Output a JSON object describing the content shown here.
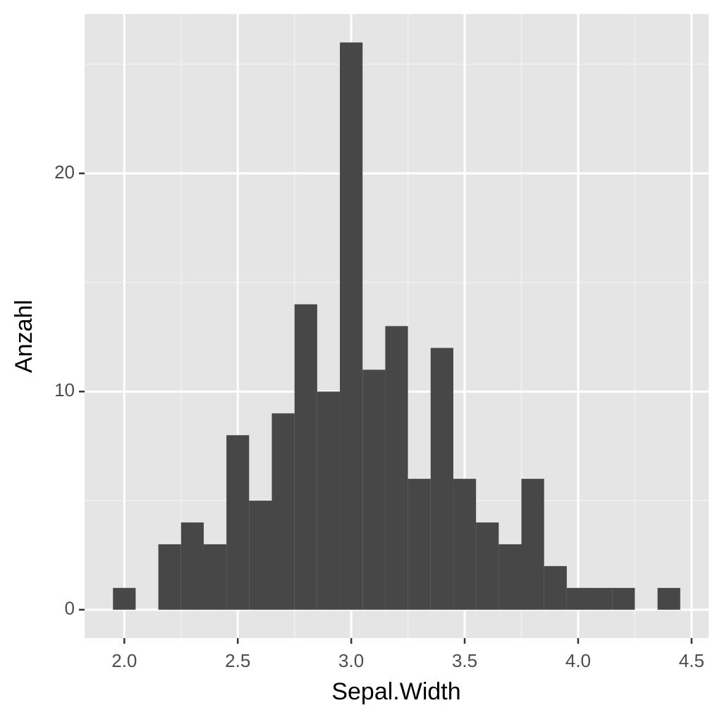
{
  "chart_data": {
    "type": "histogram",
    "x_label": "Sepal.Width",
    "y_label": "Anzahl",
    "bins": [
      1.95,
      2.05,
      2.15,
      2.25,
      2.35,
      2.45,
      2.55,
      2.65,
      2.75,
      2.85,
      2.95,
      3.05,
      3.15,
      3.25,
      3.35,
      3.45,
      3.55,
      3.65,
      3.75,
      3.85,
      3.95,
      4.05,
      4.15,
      4.25,
      4.35,
      4.45
    ],
    "values": [
      1,
      0,
      3,
      4,
      3,
      8,
      5,
      9,
      14,
      10,
      26,
      11,
      13,
      6,
      12,
      6,
      4,
      3,
      6,
      2,
      1,
      1,
      1,
      0,
      1
    ],
    "color": "#474747",
    "xlim": [
      1.825,
      4.575
    ],
    "ylim": [
      -1.3,
      27.3
    ],
    "xticks": [
      {
        "value": 2,
        "label": "2.0"
      },
      2.5,
      {
        "value": 3,
        "label": "3.0"
      },
      3.5,
      {
        "value": 4,
        "label": "4.0"
      },
      4.5
    ],
    "yticks": [
      0,
      10,
      20
    ],
    "grid": true
  }
}
